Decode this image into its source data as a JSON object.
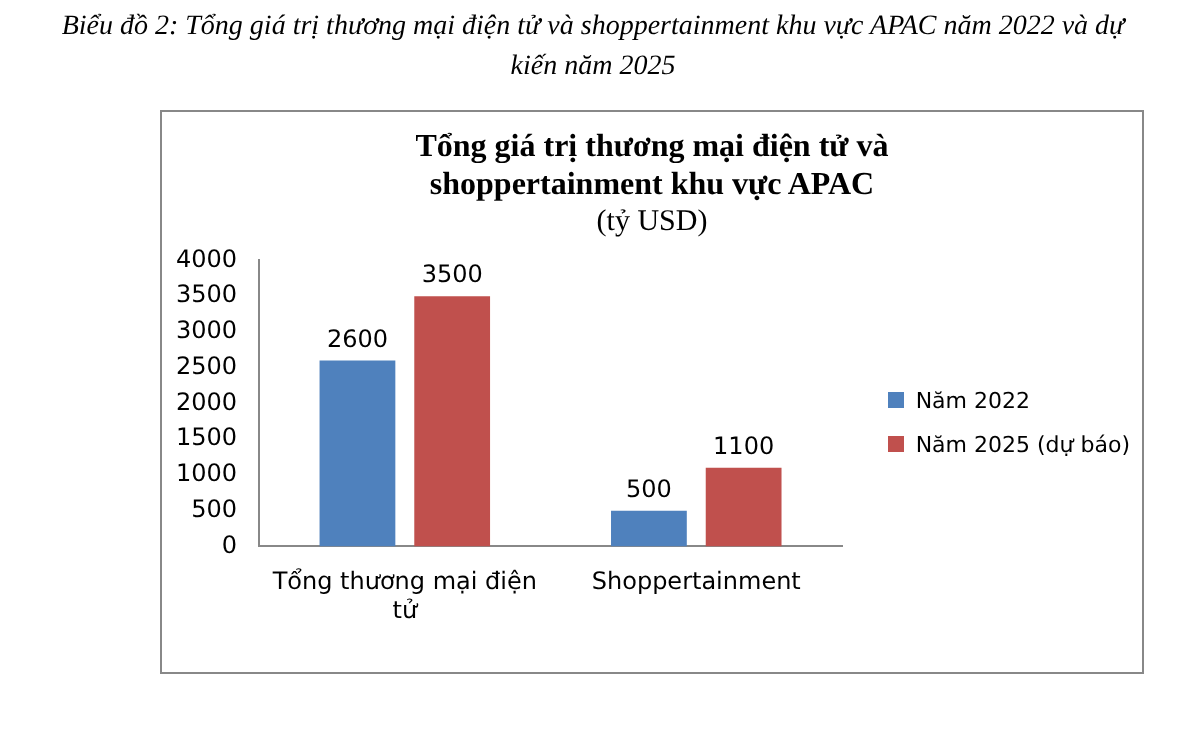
{
  "chart_data": {
    "type": "bar",
    "title": "Biểu đồ 2: Tổng giá trị thương mại điện tử và shoppertainment khu vực APAC năm 2022 và dự kiến năm 2025",
    "subtitle": "Tổng giá trị thương mại điện tử và shoppertainment khu vực APAC",
    "annotations": [
      "(tỷ USD)"
    ],
    "categories": [
      "Tổng thương mại điện tử",
      "Shoppertainment"
    ],
    "series": [
      {
        "name": "Năm 2022",
        "color": "#4f81bd",
        "values": [
          2600,
          500
        ]
      },
      {
        "name": "Năm 2025 (dự báo)",
        "color": "#c0504d",
        "values": [
          3500,
          1100
        ]
      }
    ],
    "ylim": [
      0,
      4000
    ],
    "yticks": [
      0,
      500,
      1000,
      1500,
      2000,
      2500,
      3000,
      3500,
      4000
    ],
    "grid": false,
    "legend": "right",
    "data_labels": true
  }
}
